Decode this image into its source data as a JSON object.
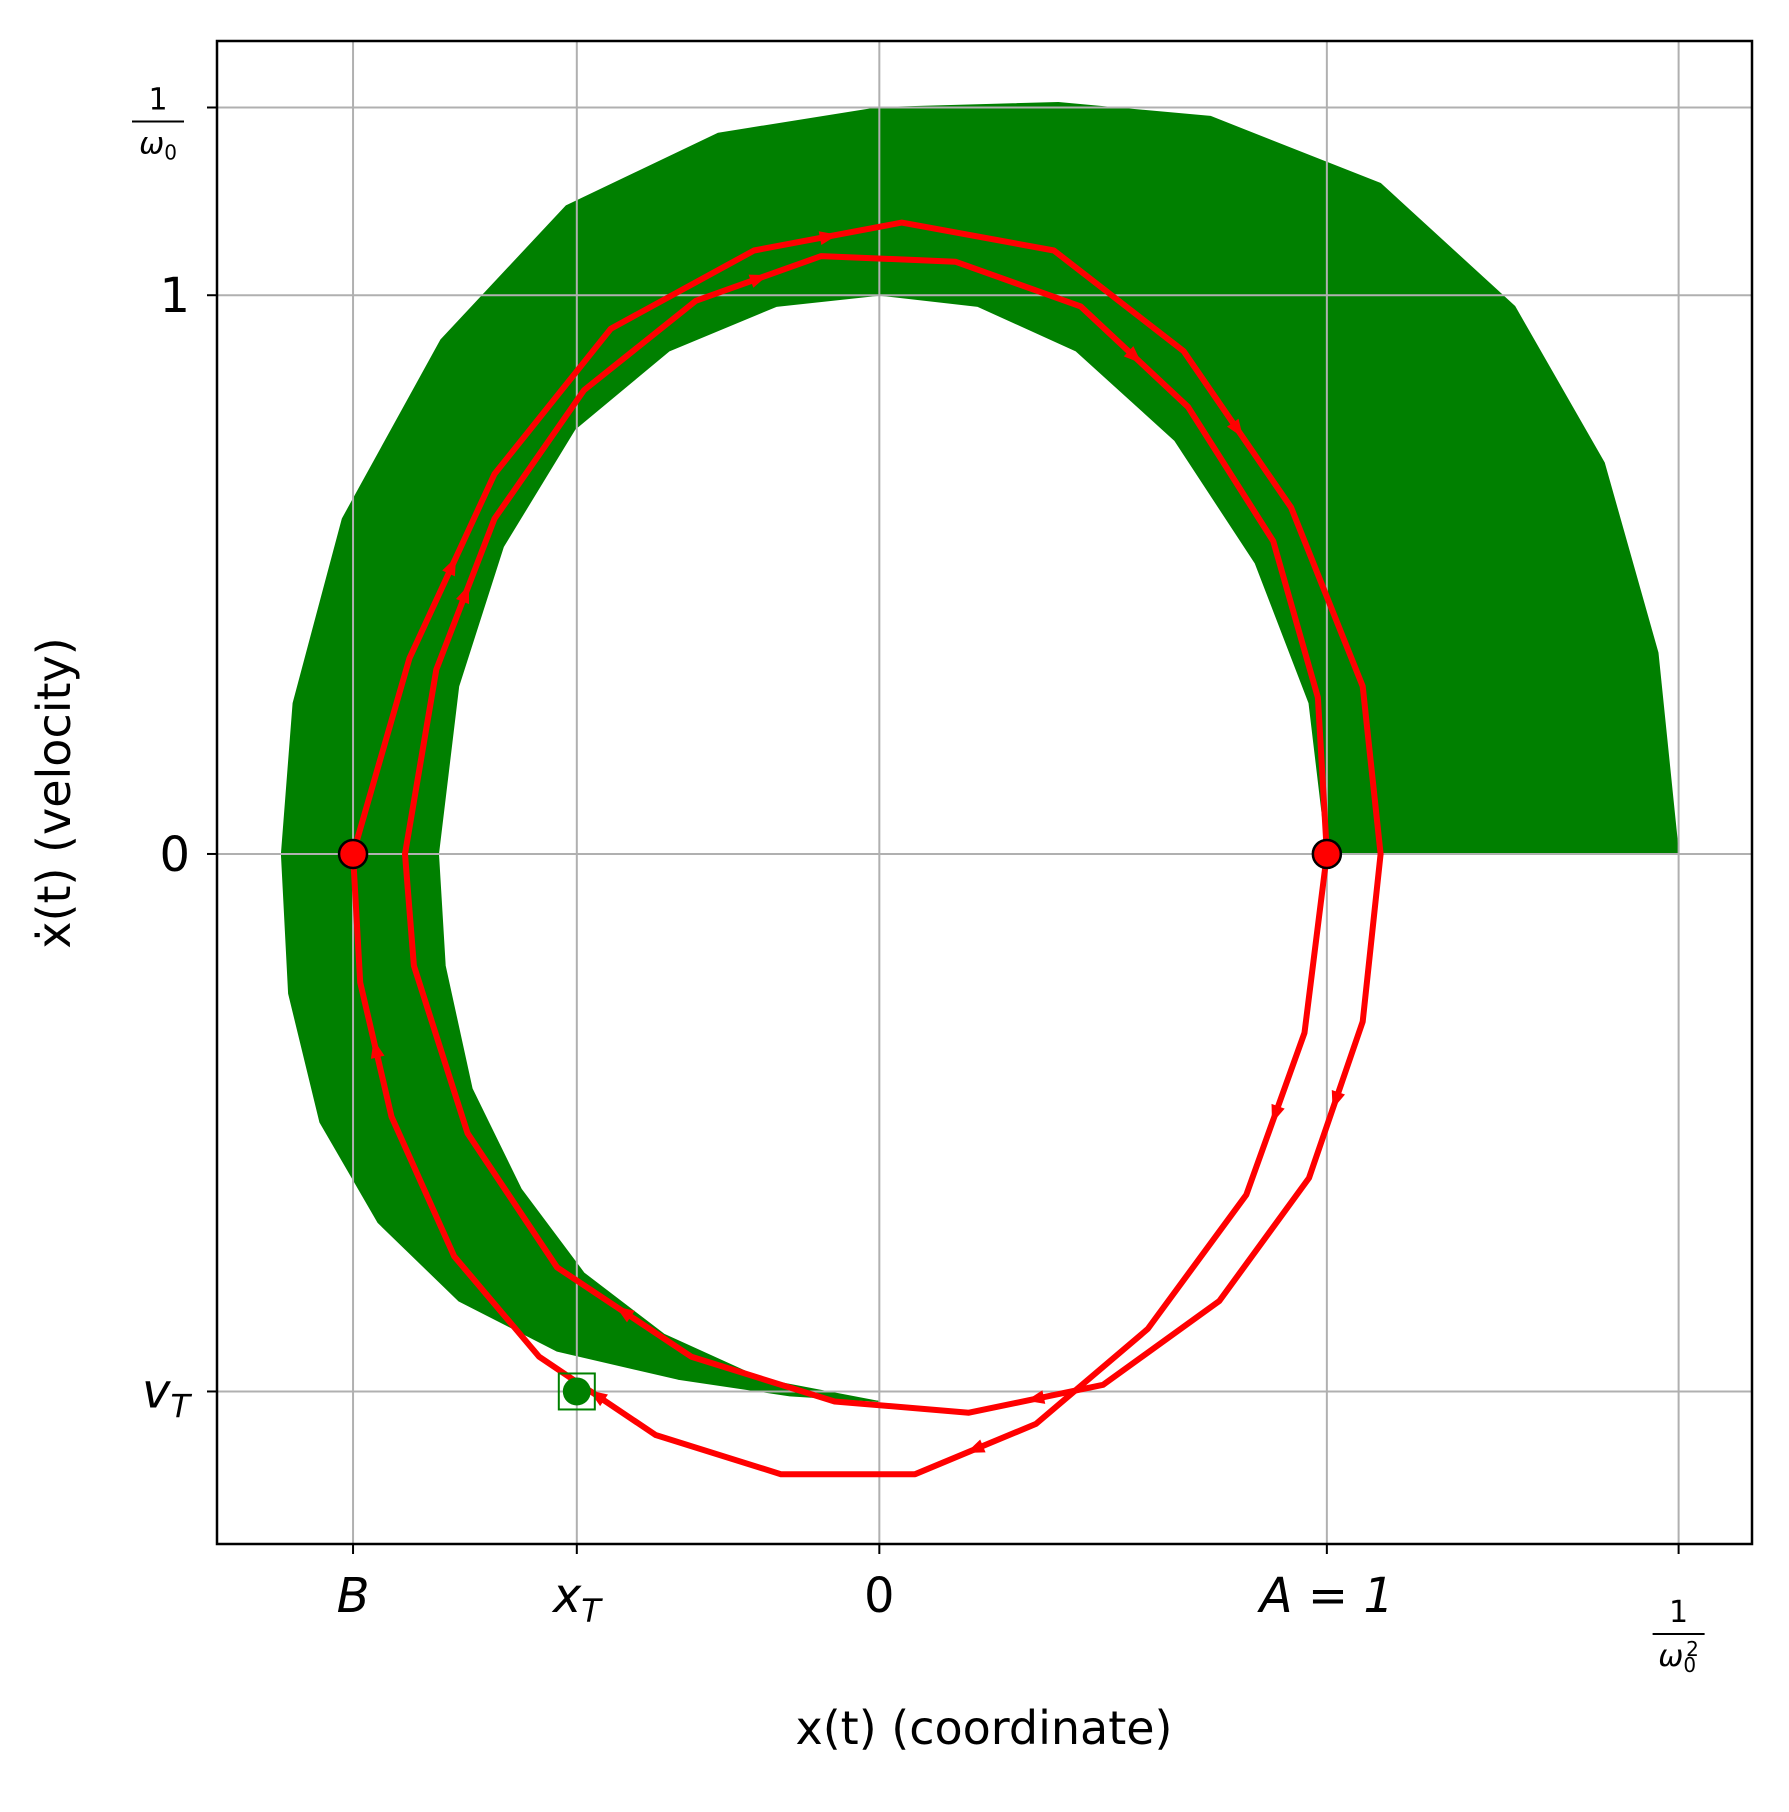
{
  "chart_data": {
    "type": "line",
    "title": "",
    "xlabel": "x(t) (coordinate)",
    "ylabel": "ẋ(t) (velocity)",
    "xlim": [
      -1.48,
      1.95
    ],
    "ylim": [
      -1.235,
      1.455
    ],
    "grid": true,
    "x_ticks": [
      {
        "value": -1.176,
        "label": "B"
      },
      {
        "value": -0.676,
        "label": "x_T"
      },
      {
        "value": 0,
        "label": "0"
      },
      {
        "value": 1,
        "label": "A = 1"
      },
      {
        "value": 1.786,
        "label": "1/ω0²"
      }
    ],
    "y_ticks": [
      {
        "value": -0.962,
        "label": "v_T"
      },
      {
        "value": 0,
        "label": "0"
      },
      {
        "value": 1,
        "label": "1"
      },
      {
        "value": 1.336,
        "label": "1/ω0"
      }
    ],
    "shaded_region": {
      "color": "#008000",
      "outer_boundary": [
        [
          1.786,
          0
        ],
        [
          1.74,
          0.36
        ],
        [
          1.62,
          0.7
        ],
        [
          1.42,
          0.98
        ],
        [
          1.12,
          1.2
        ],
        [
          0.74,
          1.32
        ],
        [
          0.4,
          1.345
        ],
        [
          0,
          1.336
        ],
        [
          -0.36,
          1.29
        ],
        [
          -0.7,
          1.16
        ],
        [
          -0.98,
          0.92
        ],
        [
          -1.2,
          0.6
        ],
        [
          -1.31,
          0.27
        ],
        [
          -1.336,
          0
        ],
        [
          -1.32,
          -0.25
        ],
        [
          -1.25,
          -0.48
        ],
        [
          -1.12,
          -0.66
        ],
        [
          -0.94,
          -0.8
        ],
        [
          -0.72,
          -0.89
        ],
        [
          -0.45,
          -0.94
        ],
        [
          -0.2,
          -0.97
        ],
        [
          0,
          -0.98
        ]
      ],
      "inner_boundary": [
        [
          1,
          0
        ],
        [
          0.96,
          0.27
        ],
        [
          0.84,
          0.52
        ],
        [
          0.66,
          0.74
        ],
        [
          0.44,
          0.9
        ],
        [
          0.22,
          0.98
        ],
        [
          0,
          1
        ],
        [
          -0.23,
          0.98
        ],
        [
          -0.47,
          0.9
        ],
        [
          -0.68,
          0.76
        ],
        [
          -0.84,
          0.55
        ],
        [
          -0.94,
          0.3
        ],
        [
          -0.985,
          0
        ],
        [
          -0.97,
          -0.2
        ],
        [
          -0.91,
          -0.42
        ],
        [
          -0.8,
          -0.6
        ],
        [
          -0.66,
          -0.75
        ],
        [
          -0.48,
          -0.86
        ],
        [
          -0.26,
          -0.94
        ],
        [
          0,
          -0.98
        ]
      ]
    },
    "series": [
      {
        "color": "#ff0000",
        "x": [
          1,
          0.95,
          0.82,
          0.6,
          0.35,
          0.08,
          -0.22,
          -0.5,
          -0.76,
          -0.95,
          -1.09,
          -1.16,
          -1.176
        ],
        "y": [
          0,
          -0.32,
          -0.61,
          -0.85,
          -1.02,
          -1.11,
          -1.11,
          -1.04,
          -0.9,
          -0.72,
          -0.47,
          -0.23,
          0
        ]
      },
      {
        "color": "#ff0000",
        "x": [
          -1.176,
          -1.05,
          -0.86,
          -0.6,
          -0.28,
          0.05,
          0.39,
          0.68,
          0.92,
          1.08,
          1.12
        ],
        "y": [
          0,
          0.35,
          0.68,
          0.94,
          1.08,
          1.13,
          1.08,
          0.9,
          0.62,
          0.3,
          0
        ]
      },
      {
        "color": "#ff0000",
        "x": [
          1.12,
          1.08,
          0.96,
          0.76,
          0.5,
          0.2,
          -0.1,
          -0.42,
          -0.72,
          -0.92,
          -1.04,
          -1.06
        ],
        "y": [
          0,
          -0.3,
          -0.58,
          -0.8,
          -0.95,
          -1.0,
          -0.98,
          -0.9,
          -0.74,
          -0.5,
          -0.2,
          0
        ]
      },
      {
        "color": "#ff0000",
        "x": [
          -1.06,
          -0.99,
          -0.86,
          -0.66,
          -0.41,
          -0.13,
          0.17,
          0.45,
          0.69,
          0.88,
          0.98,
          1.0
        ],
        "y": [
          0,
          0.33,
          0.6,
          0.83,
          0.99,
          1.07,
          1.06,
          0.98,
          0.8,
          0.56,
          0.28,
          0
        ]
      }
    ],
    "markers": [
      {
        "x": -1.176,
        "y": 0,
        "color": "#ff0000",
        "shape": "circle"
      },
      {
        "x": 1,
        "y": 0,
        "color": "#ff0000",
        "shape": "circle"
      },
      {
        "x": -0.676,
        "y": -0.962,
        "color": "#008000",
        "shape": "circle-in-square"
      }
    ]
  }
}
